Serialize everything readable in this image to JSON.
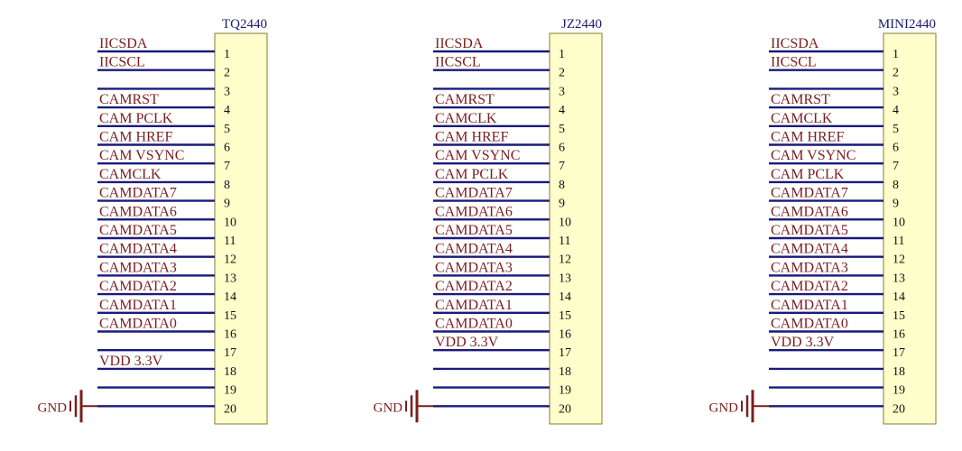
{
  "colors": {
    "wire": "#1a1a7a",
    "net_text": "#7a1e1e",
    "body_fill": "#ffffcc",
    "body_stroke": "#8a7a30",
    "ground": "#7a1e1e"
  },
  "gnd_label": "GND",
  "gnd_icon": "ground-icon",
  "connectors": [
    {
      "name": "TQ2440",
      "pins": [
        {
          "num": "1",
          "net": "IICSDA"
        },
        {
          "num": "2",
          "net": "IICSCL"
        },
        {
          "num": "3",
          "net": ""
        },
        {
          "num": "4",
          "net": "CAMRST"
        },
        {
          "num": "5",
          "net": "CAM PCLK"
        },
        {
          "num": "6",
          "net": "CAM HREF"
        },
        {
          "num": "7",
          "net": "CAM VSYNC"
        },
        {
          "num": "8",
          "net": "CAMCLK"
        },
        {
          "num": "9",
          "net": "CAMDATA7"
        },
        {
          "num": "10",
          "net": "CAMDATA6"
        },
        {
          "num": "11",
          "net": "CAMDATA5"
        },
        {
          "num": "12",
          "net": "CAMDATA4"
        },
        {
          "num": "13",
          "net": "CAMDATA3"
        },
        {
          "num": "14",
          "net": "CAMDATA2"
        },
        {
          "num": "15",
          "net": "CAMDATA1"
        },
        {
          "num": "16",
          "net": "CAMDATA0"
        },
        {
          "num": "17",
          "net": ""
        },
        {
          "num": "18",
          "net": "VDD 3.3V"
        },
        {
          "num": "19",
          "net": ""
        },
        {
          "num": "20",
          "net": ""
        }
      ]
    },
    {
      "name": "JZ2440",
      "pins": [
        {
          "num": "1",
          "net": "IICSDA"
        },
        {
          "num": "2",
          "net": "IICSCL"
        },
        {
          "num": "3",
          "net": ""
        },
        {
          "num": "4",
          "net": "CAMRST"
        },
        {
          "num": "5",
          "net": "CAMCLK"
        },
        {
          "num": "6",
          "net": "CAM HREF"
        },
        {
          "num": "7",
          "net": "CAM VSYNC"
        },
        {
          "num": "8",
          "net": "CAM PCLK"
        },
        {
          "num": "9",
          "net": "CAMDATA7"
        },
        {
          "num": "10",
          "net": "CAMDATA6"
        },
        {
          "num": "11",
          "net": "CAMDATA5"
        },
        {
          "num": "12",
          "net": "CAMDATA4"
        },
        {
          "num": "13",
          "net": "CAMDATA3"
        },
        {
          "num": "14",
          "net": "CAMDATA2"
        },
        {
          "num": "15",
          "net": "CAMDATA1"
        },
        {
          "num": "16",
          "net": "CAMDATA0"
        },
        {
          "num": "17",
          "net": "VDD 3.3V"
        },
        {
          "num": "18",
          "net": ""
        },
        {
          "num": "19",
          "net": ""
        },
        {
          "num": "20",
          "net": ""
        }
      ]
    },
    {
      "name": "MINI2440",
      "pins": [
        {
          "num": "1",
          "net": "IICSDA"
        },
        {
          "num": "2",
          "net": "IICSCL"
        },
        {
          "num": "3",
          "net": ""
        },
        {
          "num": "4",
          "net": "CAMRST"
        },
        {
          "num": "5",
          "net": "CAMCLK"
        },
        {
          "num": "6",
          "net": "CAM HREF"
        },
        {
          "num": "7",
          "net": "CAM VSYNC"
        },
        {
          "num": "8",
          "net": "CAM PCLK"
        },
        {
          "num": "9",
          "net": "CAMDATA7"
        },
        {
          "num": "10",
          "net": "CAMDATA6"
        },
        {
          "num": "11",
          "net": "CAMDATA5"
        },
        {
          "num": "12",
          "net": "CAMDATA4"
        },
        {
          "num": "13",
          "net": "CAMDATA3"
        },
        {
          "num": "14",
          "net": "CAMDATA2"
        },
        {
          "num": "15",
          "net": "CAMDATA1"
        },
        {
          "num": "16",
          "net": "CAMDATA0"
        },
        {
          "num": "17",
          "net": "VDD 3.3V"
        },
        {
          "num": "18",
          "net": ""
        },
        {
          "num": "19",
          "net": ""
        },
        {
          "num": "20",
          "net": ""
        }
      ]
    }
  ]
}
